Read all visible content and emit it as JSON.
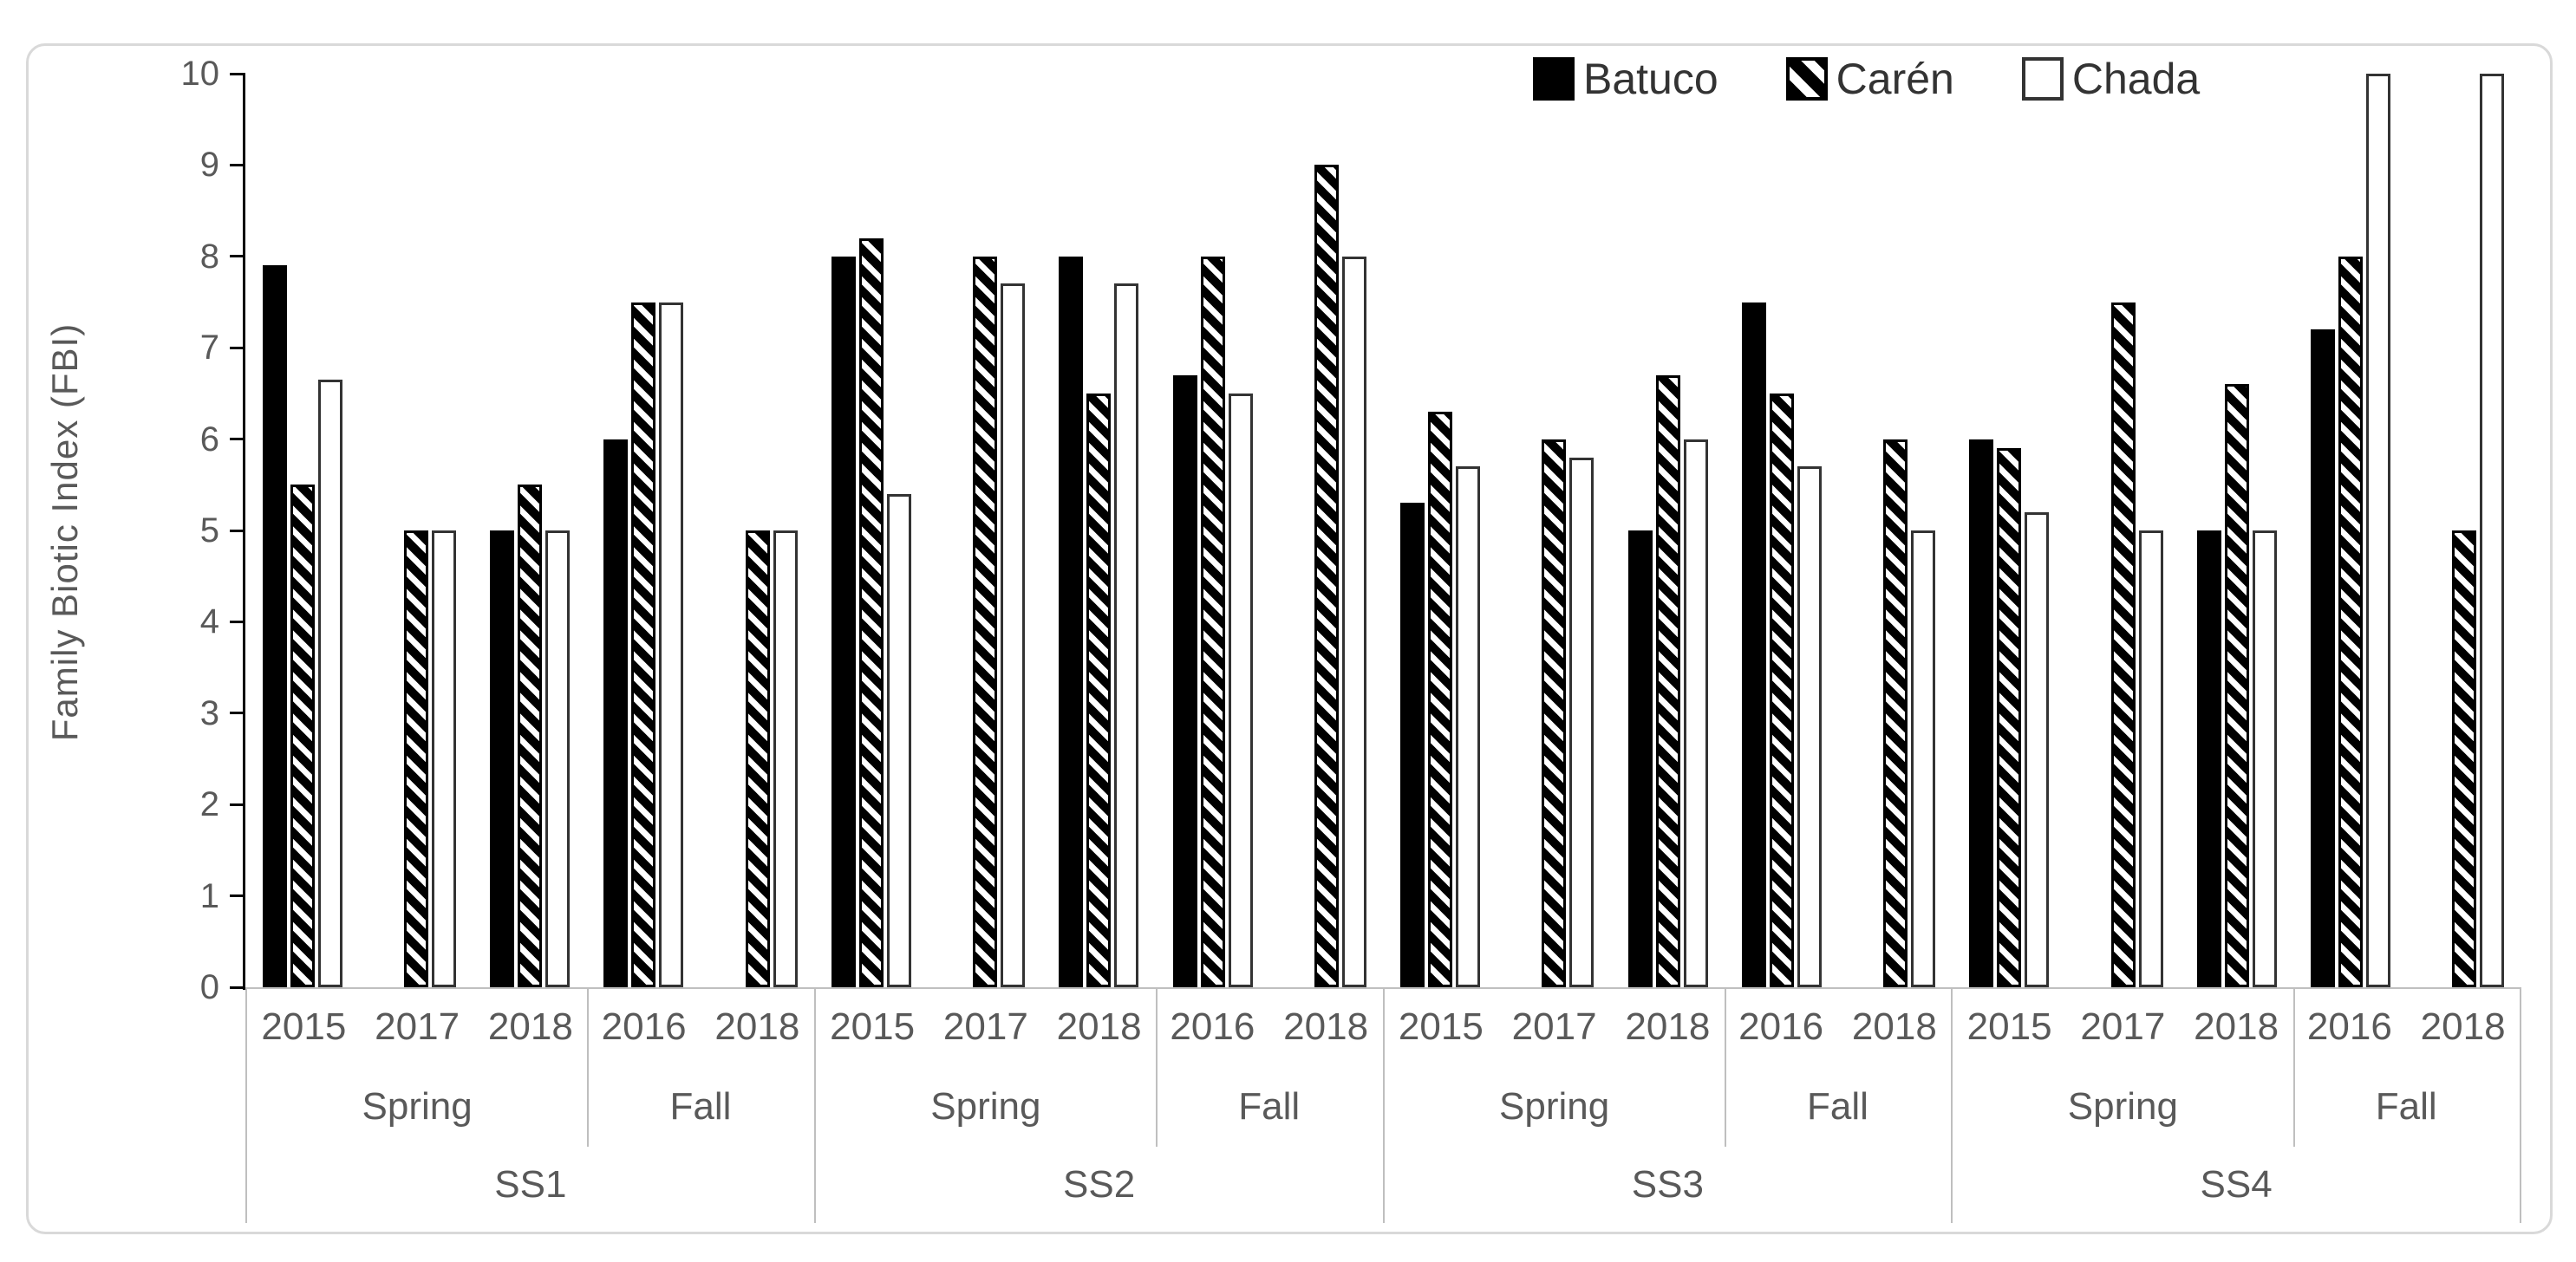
{
  "figure": {
    "background": "#ffffff",
    "border_color": "#d9d9d9",
    "axis_color": "#000000",
    "grid_separator_color": "#bfbfbf",
    "text_color": "#595959",
    "legend_text_color": "#333333"
  },
  "legend": {
    "items": [
      {
        "label": "Batuco",
        "pattern": "solid-black"
      },
      {
        "label": "Carén",
        "pattern": "diagonal-hatch"
      },
      {
        "label": "Chada",
        "pattern": "open-white"
      }
    ]
  },
  "chart_data": {
    "type": "bar",
    "title": "",
    "ylabel": "Family Biotic Index (FBI)",
    "xlabel": "",
    "ylim": [
      0,
      10
    ],
    "yticks": [
      0,
      1,
      2,
      3,
      4,
      5,
      6,
      7,
      8,
      9,
      10
    ],
    "grid": false,
    "legend_position": "top-right",
    "series": [
      "Batuco",
      "Carén",
      "Chada"
    ],
    "sites": [
      {
        "site": "SS1",
        "seasons": [
          {
            "season": "Spring",
            "clusters": [
              {
                "year": "2015",
                "values": [
                  7.9,
                  5.5,
                  6.65
                ]
              },
              {
                "year": "2017",
                "values": [
                  null,
                  5.0,
                  5.0
                ]
              },
              {
                "year": "2018",
                "values": [
                  5.0,
                  5.5,
                  5.0
                ]
              }
            ]
          },
          {
            "season": "Fall",
            "clusters": [
              {
                "year": "2016",
                "values": [
                  6.0,
                  7.5,
                  7.5
                ]
              },
              {
                "year": "2018",
                "values": [
                  null,
                  5.0,
                  5.0
                ]
              }
            ]
          }
        ]
      },
      {
        "site": "SS2",
        "seasons": [
          {
            "season": "Spring",
            "clusters": [
              {
                "year": "2015",
                "values": [
                  8.0,
                  8.2,
                  5.4
                ]
              },
              {
                "year": "2017",
                "values": [
                  null,
                  8.0,
                  7.7
                ]
              },
              {
                "year": "2018",
                "values": [
                  8.0,
                  6.5,
                  7.7
                ]
              }
            ]
          },
          {
            "season": "Fall",
            "clusters": [
              {
                "year": "2016",
                "values": [
                  6.7,
                  8.0,
                  6.5
                ]
              },
              {
                "year": "2018",
                "values": [
                  null,
                  9.0,
                  8.0
                ]
              }
            ]
          }
        ]
      },
      {
        "site": "SS3",
        "seasons": [
          {
            "season": "Spring",
            "clusters": [
              {
                "year": "2015",
                "values": [
                  5.3,
                  6.3,
                  5.7
                ]
              },
              {
                "year": "2017",
                "values": [
                  null,
                  6.0,
                  5.8
                ]
              },
              {
                "year": "2018",
                "values": [
                  5.0,
                  6.7,
                  6.0
                ]
              }
            ]
          },
          {
            "season": "Fall",
            "clusters": [
              {
                "year": "2016",
                "values": [
                  7.5,
                  6.5,
                  5.7
                ]
              },
              {
                "year": "2018",
                "values": [
                  null,
                  6.0,
                  5.0
                ]
              }
            ]
          }
        ]
      },
      {
        "site": "SS4",
        "seasons": [
          {
            "season": "Spring",
            "clusters": [
              {
                "year": "2015",
                "values": [
                  6.0,
                  5.9,
                  5.2
                ]
              },
              {
                "year": "2017",
                "values": [
                  null,
                  7.5,
                  5.0
                ]
              },
              {
                "year": "2018",
                "values": [
                  5.0,
                  6.6,
                  5.0
                ]
              }
            ]
          },
          {
            "season": "Fall",
            "clusters": [
              {
                "year": "2016",
                "values": [
                  7.2,
                  8.0,
                  10.0
                ]
              },
              {
                "year": "2018",
                "values": [
                  null,
                  5.0,
                  10.0
                ]
              }
            ]
          }
        ]
      }
    ]
  }
}
